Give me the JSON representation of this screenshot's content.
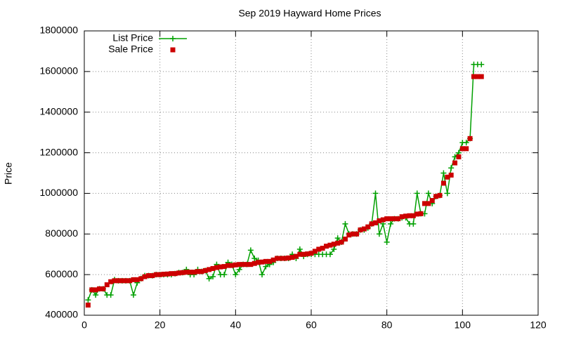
{
  "chart_data": {
    "type": "line",
    "title": "Sep 2019 Hayward Home Prices",
    "y_label": "Price",
    "x": [
      1,
      2,
      3,
      4,
      5,
      6,
      7,
      8,
      9,
      10,
      11,
      12,
      13,
      14,
      15,
      16,
      17,
      18,
      19,
      20,
      21,
      22,
      23,
      24,
      25,
      26,
      27,
      28,
      29,
      30,
      31,
      32,
      33,
      34,
      35,
      36,
      37,
      38,
      39,
      40,
      41,
      42,
      43,
      44,
      45,
      46,
      47,
      48,
      49,
      50,
      51,
      52,
      53,
      54,
      55,
      56,
      57,
      58,
      59,
      60,
      61,
      62,
      63,
      64,
      65,
      66,
      67,
      68,
      69,
      70,
      71,
      72,
      73,
      74,
      75,
      76,
      77,
      78,
      79,
      80,
      81,
      82,
      83,
      84,
      85,
      86,
      87,
      88,
      89,
      90,
      91,
      92,
      93,
      94,
      95,
      96,
      97,
      98,
      99,
      100,
      101,
      102,
      103,
      104,
      105
    ],
    "series": [
      {
        "name": "List Price",
        "color": "#00a000",
        "marker": "plus",
        "line": true,
        "values": [
          475000,
          525000,
          500000,
          530000,
          530000,
          500000,
          500000,
          575000,
          570000,
          570000,
          570000,
          570000,
          500000,
          560000,
          580000,
          595000,
          595000,
          595000,
          600000,
          600000,
          600000,
          600000,
          600000,
          605000,
          610000,
          610000,
          625000,
          600000,
          600000,
          625000,
          615000,
          620000,
          580000,
          590000,
          650000,
          600000,
          600000,
          660000,
          650000,
          600000,
          625000,
          650000,
          650000,
          720000,
          680000,
          670000,
          600000,
          640000,
          650000,
          660000,
          680000,
          680000,
          680000,
          680000,
          700000,
          680000,
          725000,
          690000,
          700000,
          700000,
          700000,
          700000,
          700000,
          700000,
          700000,
          725000,
          780000,
          760000,
          850000,
          800000,
          800000,
          800000,
          820000,
          820000,
          830000,
          850000,
          1000000,
          800000,
          850000,
          760000,
          850000,
          875000,
          875000,
          880000,
          880000,
          850000,
          850000,
          1000000,
          900000,
          900000,
          1000000,
          950000,
          985000,
          990000,
          1100000,
          1000000,
          1125000,
          1180000,
          1200000,
          1250000,
          1250000,
          1270000,
          1635000,
          1635000,
          1635000
        ]
      },
      {
        "name": "Sale Price",
        "color": "#cc0000",
        "marker": "square",
        "line": false,
        "values": [
          450000,
          525000,
          525000,
          530000,
          530000,
          550000,
          565000,
          570000,
          570000,
          570000,
          570000,
          570000,
          575000,
          575000,
          580000,
          590000,
          595000,
          595000,
          600000,
          600000,
          602000,
          603000,
          605000,
          605000,
          608000,
          610000,
          612000,
          612000,
          612000,
          615000,
          615000,
          620000,
          625000,
          630000,
          635000,
          638000,
          640000,
          645000,
          645000,
          648000,
          650000,
          650000,
          650000,
          650000,
          655000,
          660000,
          662000,
          665000,
          665000,
          672000,
          680000,
          680000,
          680000,
          682000,
          685000,
          690000,
          700000,
          700000,
          702000,
          705000,
          715000,
          725000,
          730000,
          740000,
          745000,
          750000,
          755000,
          760000,
          775000,
          795000,
          800000,
          800000,
          820000,
          825000,
          835000,
          850000,
          855000,
          865000,
          870000,
          875000,
          875000,
          875000,
          875000,
          885000,
          888000,
          890000,
          890000,
          898000,
          900000,
          950000,
          950000,
          965000,
          985000,
          990000,
          1050000,
          1080000,
          1090000,
          1150000,
          1180000,
          1220000,
          1220000,
          1270000,
          1575000,
          1575000,
          1575000
        ]
      }
    ],
    "xlim": [
      0,
      120
    ],
    "xticks": [
      0,
      20,
      40,
      60,
      80,
      100,
      120
    ],
    "ylim": [
      400000,
      1800000
    ],
    "yticks": [
      400000,
      600000,
      800000,
      1000000,
      1200000,
      1400000,
      1600000,
      1800000
    ],
    "grid": true,
    "legend": "top-left"
  }
}
